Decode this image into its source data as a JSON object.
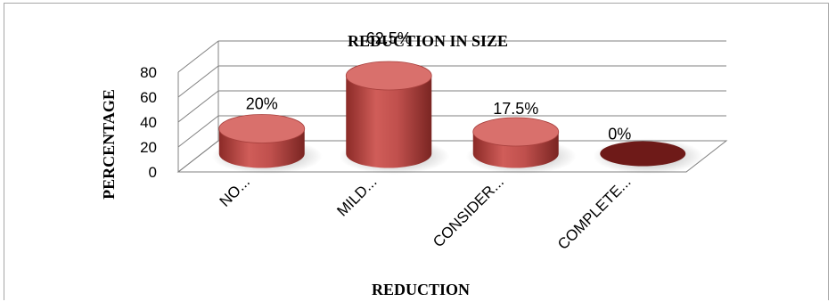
{
  "chart_data": {
    "type": "bar",
    "title": "REDUCTION IN SIZE",
    "xlabel": "REDUCTION",
    "ylabel": "PERCENTAGE",
    "categories": [
      "NO...",
      "MILD...",
      "CONSIDER...",
      "COMPLETE..."
    ],
    "values": [
      20,
      62.5,
      17.5,
      0
    ],
    "data_labels": [
      "20%",
      "62.5%",
      "17.5%",
      "0%"
    ],
    "yticks": [
      "0",
      "20",
      "40",
      "60",
      "80"
    ],
    "ylim": [
      0,
      80
    ],
    "grid": true,
    "legend": "none",
    "style": "3d-cylinder",
    "colors": {
      "bar": "#c0504d",
      "bar_dark": "#8b2a27",
      "bar_top": "#d9706c",
      "zero_bar": "#6e1a18",
      "grid": "#808080",
      "frame": "#a6a6a6"
    }
  }
}
